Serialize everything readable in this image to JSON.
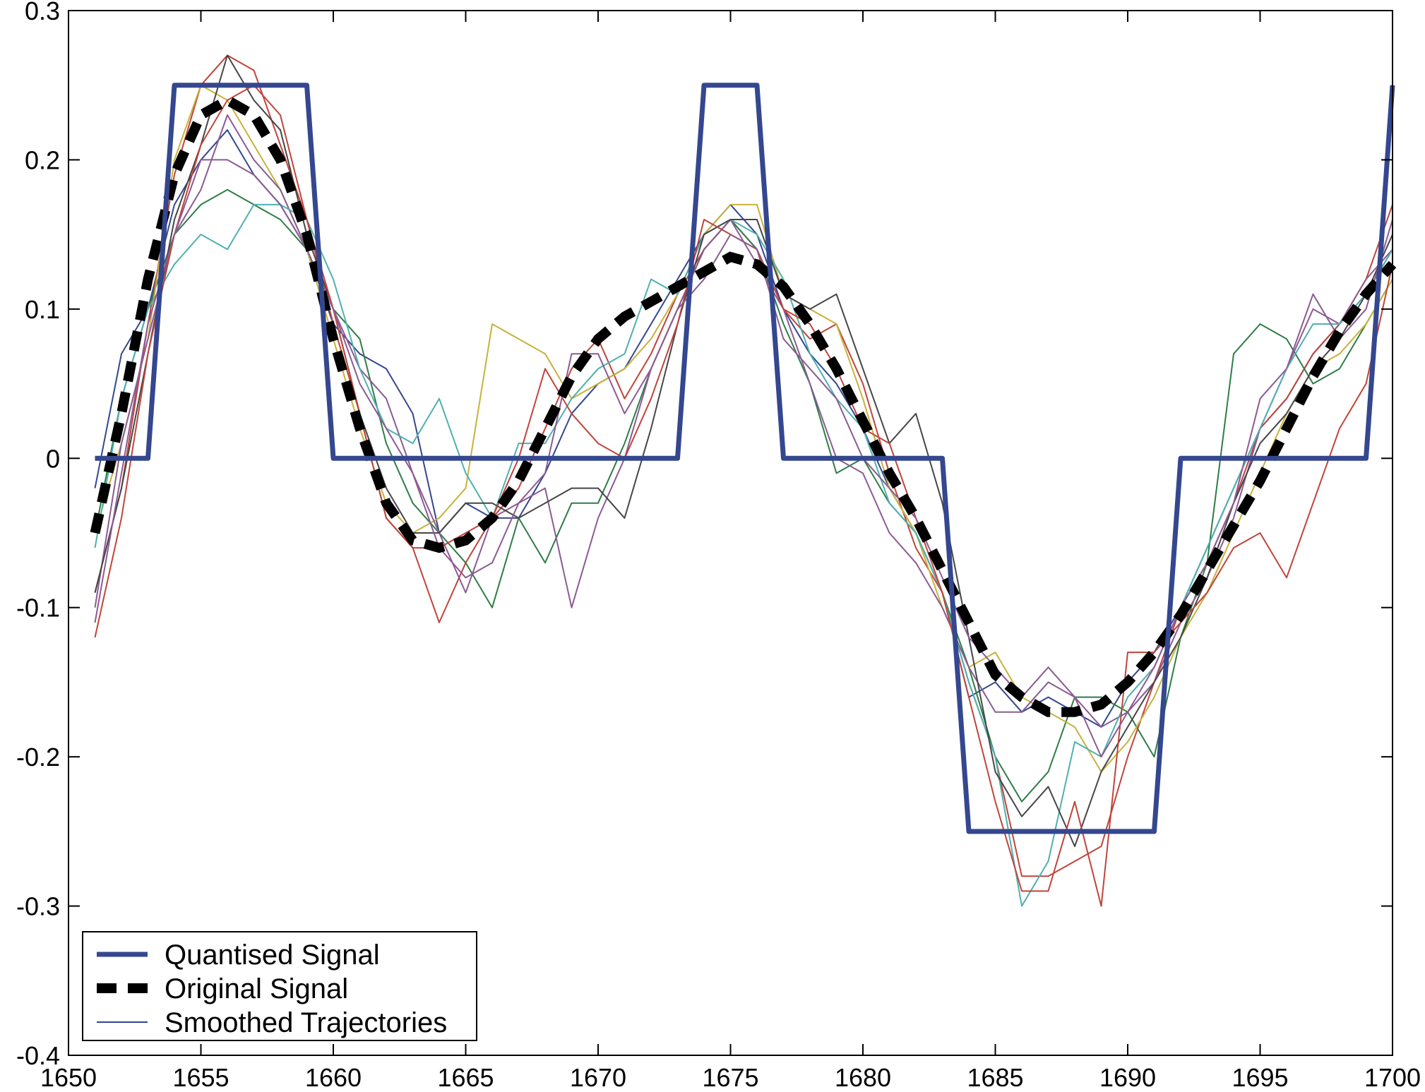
{
  "chart_data": {
    "type": "line",
    "title": "",
    "xlabel": "",
    "ylabel": "",
    "xlim": [
      1650,
      1700
    ],
    "ylim": [
      -0.4,
      0.3
    ],
    "xticks": [
      1650,
      1655,
      1660,
      1665,
      1670,
      1675,
      1680,
      1685,
      1690,
      1695,
      1700
    ],
    "yticks": [
      -0.4,
      -0.3,
      -0.2,
      -0.1,
      0,
      0.1,
      0.2,
      0.3
    ],
    "xtick_labels": [
      "1650",
      "1655",
      "1660",
      "1665",
      "1670",
      "1675",
      "1680",
      "1685",
      "1690",
      "1695",
      "1700"
    ],
    "ytick_labels": [
      "-0.4",
      "-0.3",
      "-0.2",
      "-0.1",
      "0",
      "0.1",
      "0.2",
      "0.3"
    ],
    "grid": false,
    "legend": {
      "position": "bottom-left",
      "entries": [
        {
          "name": "Quantised Signal",
          "color": "#34478f",
          "style": "solid-thick"
        },
        {
          "name": "Original Signal",
          "color": "#000000",
          "style": "dashed-thick"
        },
        {
          "name": "Smoothed Trajectories",
          "color": "#34478f",
          "style": "solid-thin"
        }
      ]
    },
    "quantised_signal": {
      "name": "Quantised Signal",
      "color": "#34478f",
      "x": [
        1651,
        1653,
        1654,
        1659,
        1660,
        1673,
        1674,
        1676,
        1677,
        1683,
        1684,
        1691,
        1692,
        1699,
        1700
      ],
      "y": [
        0,
        0,
        0.25,
        0.25,
        0,
        0,
        0.25,
        0.25,
        0,
        0,
        -0.25,
        -0.25,
        0,
        0,
        0.25
      ]
    },
    "original_signal": {
      "name": "Original Signal",
      "color": "#000000",
      "x": [
        1651,
        1652,
        1653,
        1654,
        1655,
        1656,
        1657,
        1658,
        1659,
        1660,
        1661,
        1662,
        1663,
        1664,
        1665,
        1666,
        1667,
        1668,
        1669,
        1670,
        1671,
        1672,
        1673,
        1674,
        1675,
        1676,
        1677,
        1678,
        1679,
        1680,
        1681,
        1682,
        1683,
        1684,
        1685,
        1686,
        1687,
        1688,
        1689,
        1690,
        1691,
        1692,
        1693,
        1694,
        1695,
        1696,
        1697,
        1698,
        1699,
        1700
      ],
      "y": [
        -0.05,
        0.03,
        0.12,
        0.19,
        0.23,
        0.24,
        0.23,
        0.2,
        0.15,
        0.08,
        0.02,
        -0.03,
        -0.055,
        -0.06,
        -0.055,
        -0.04,
        -0.015,
        0.02,
        0.055,
        0.08,
        0.095,
        0.105,
        0.115,
        0.125,
        0.135,
        0.13,
        0.115,
        0.09,
        0.06,
        0.025,
        -0.01,
        -0.04,
        -0.075,
        -0.11,
        -0.145,
        -0.16,
        -0.17,
        -0.17,
        -0.165,
        -0.15,
        -0.13,
        -0.105,
        -0.075,
        -0.045,
        -0.015,
        0.02,
        0.055,
        0.085,
        0.11,
        0.13
      ]
    },
    "trajectories": [
      {
        "color": "#34478f",
        "y": [
          -0.02,
          0.07,
          0.1,
          0.17,
          0.2,
          0.22,
          0.19,
          0.17,
          0.14,
          0.09,
          0.07,
          0.06,
          0.03,
          -0.05,
          -0.03,
          -0.04,
          -0.04,
          -0.01,
          0.03,
          0.05,
          0.06,
          0.09,
          0.12,
          0.15,
          0.17,
          0.15,
          0.1,
          0.07,
          0.05,
          0.02,
          -0.02,
          -0.05,
          -0.09,
          -0.16,
          -0.15,
          -0.17,
          -0.16,
          -0.17,
          -0.18,
          -0.15,
          -0.13,
          -0.1,
          -0.06,
          -0.02,
          0.02,
          0.04,
          0.07,
          0.09,
          0.11,
          0.14
        ]
      },
      {
        "color": "#c0443b",
        "y": [
          -0.09,
          -0.02,
          0.09,
          0.19,
          0.25,
          0.27,
          0.26,
          0.21,
          0.16,
          0.09,
          0.03,
          -0.04,
          -0.06,
          -0.11,
          -0.07,
          -0.04,
          -0.02,
          0.02,
          0.06,
          0.08,
          0.04,
          0.07,
          0.11,
          0.14,
          0.16,
          0.14,
          0.1,
          0.08,
          0.09,
          0.05,
          -0.01,
          -0.06,
          -0.09,
          -0.15,
          -0.2,
          -0.28,
          -0.28,
          -0.27,
          -0.26,
          -0.2,
          -0.15,
          -0.1,
          -0.07,
          -0.03,
          0.02,
          0.04,
          0.07,
          0.09,
          0.12,
          0.17
        ]
      },
      {
        "color": "#2e7d46",
        "y": [
          -0.05,
          0.04,
          0.1,
          0.15,
          0.17,
          0.18,
          0.17,
          0.16,
          0.14,
          0.1,
          0.08,
          0.01,
          -0.03,
          -0.05,
          -0.07,
          -0.1,
          -0.04,
          -0.07,
          -0.03,
          -0.03,
          0.01,
          0.06,
          0.1,
          0.14,
          0.16,
          0.14,
          0.09,
          0.05,
          -0.01,
          0.0,
          -0.03,
          -0.05,
          -0.09,
          -0.14,
          -0.2,
          -0.23,
          -0.21,
          -0.16,
          -0.16,
          -0.17,
          -0.2,
          -0.12,
          -0.07,
          0.07,
          0.09,
          0.08,
          0.05,
          0.06,
          0.09,
          0.12
        ]
      },
      {
        "color": "#c7b23a",
        "y": [
          -0.05,
          0.01,
          0.08,
          0.2,
          0.25,
          0.24,
          0.21,
          0.18,
          0.14,
          0.08,
          0.02,
          -0.03,
          -0.05,
          -0.04,
          -0.02,
          0.09,
          0.08,
          0.07,
          0.04,
          0.05,
          0.06,
          0.08,
          0.11,
          0.15,
          0.17,
          0.17,
          0.11,
          0.1,
          0.09,
          0.04,
          -0.02,
          -0.05,
          -0.1,
          -0.14,
          -0.13,
          -0.16,
          -0.17,
          -0.18,
          -0.21,
          -0.19,
          -0.16,
          -0.12,
          -0.09,
          -0.05,
          -0.01,
          0.03,
          0.06,
          0.07,
          0.09,
          0.12
        ]
      },
      {
        "color": "#8c5a93",
        "y": [
          -0.1,
          0.01,
          0.08,
          0.15,
          0.18,
          0.23,
          0.2,
          0.18,
          0.14,
          0.1,
          0.06,
          0.04,
          -0.01,
          -0.05,
          -0.09,
          -0.04,
          -0.03,
          -0.02,
          -0.1,
          -0.04,
          0.0,
          0.06,
          0.1,
          0.14,
          0.16,
          0.13,
          0.1,
          0.05,
          0.0,
          -0.01,
          -0.05,
          -0.07,
          -0.1,
          -0.14,
          -0.17,
          -0.17,
          -0.15,
          -0.16,
          -0.18,
          -0.17,
          -0.15,
          -0.11,
          -0.08,
          -0.04,
          0.02,
          0.06,
          0.1,
          0.09,
          0.12,
          0.14
        ]
      },
      {
        "color": "#4fb0b0",
        "y": [
          -0.06,
          0.04,
          0.1,
          0.13,
          0.15,
          0.14,
          0.17,
          0.17,
          0.16,
          0.12,
          0.06,
          0.02,
          0.01,
          0.04,
          -0.01,
          -0.04,
          0.01,
          0.01,
          0.04,
          0.06,
          0.07,
          0.12,
          0.11,
          0.15,
          0.16,
          0.15,
          0.12,
          0.07,
          0.04,
          0.02,
          -0.03,
          -0.05,
          -0.09,
          -0.15,
          -0.2,
          -0.3,
          -0.27,
          -0.19,
          -0.2,
          -0.16,
          -0.14,
          -0.1,
          -0.06,
          -0.02,
          0.02,
          0.06,
          0.09,
          0.09,
          0.11,
          0.14
        ]
      },
      {
        "color": "#464646",
        "y": [
          -0.09,
          -0.02,
          0.07,
          0.16,
          0.21,
          0.27,
          0.24,
          0.22,
          0.15,
          0.1,
          0.03,
          -0.02,
          -0.05,
          -0.05,
          -0.03,
          -0.03,
          -0.04,
          -0.03,
          -0.02,
          -0.02,
          -0.04,
          0.02,
          0.09,
          0.15,
          0.16,
          0.16,
          0.11,
          0.1,
          0.11,
          0.06,
          0.01,
          0.03,
          -0.03,
          -0.12,
          -0.21,
          -0.24,
          -0.22,
          -0.26,
          -0.21,
          -0.18,
          -0.15,
          -0.12,
          -0.08,
          -0.03,
          0.01,
          0.03,
          0.06,
          0.08,
          0.11,
          0.15
        ]
      },
      {
        "color": "#c0443b",
        "y": [
          -0.12,
          -0.04,
          0.07,
          0.15,
          0.21,
          0.24,
          0.25,
          0.23,
          0.16,
          0.1,
          0.03,
          -0.04,
          -0.06,
          -0.06,
          -0.05,
          -0.04,
          0.0,
          0.06,
          0.03,
          0.01,
          0.0,
          0.04,
          0.09,
          0.16,
          0.15,
          0.14,
          0.1,
          0.09,
          0.06,
          0.02,
          0.01,
          -0.04,
          -0.09,
          -0.16,
          -0.23,
          -0.29,
          -0.29,
          -0.23,
          -0.3,
          -0.13,
          -0.13,
          -0.11,
          -0.09,
          -0.06,
          -0.05,
          -0.08,
          -0.03,
          0.02,
          0.05,
          0.13
        ]
      },
      {
        "color": "#8c5a93",
        "y": [
          -0.11,
          -0.01,
          0.09,
          0.15,
          0.2,
          0.2,
          0.19,
          0.17,
          0.14,
          0.1,
          0.05,
          0.02,
          -0.01,
          -0.06,
          -0.08,
          -0.07,
          -0.03,
          -0.01,
          0.07,
          0.07,
          0.03,
          0.06,
          0.1,
          0.12,
          0.15,
          0.14,
          0.08,
          0.06,
          0.04,
          0.0,
          -0.02,
          -0.04,
          -0.08,
          -0.12,
          -0.14,
          -0.16,
          -0.14,
          -0.16,
          -0.2,
          -0.17,
          -0.14,
          -0.1,
          -0.07,
          -0.03,
          0.04,
          0.06,
          0.11,
          0.08,
          0.1,
          0.16
        ]
      }
    ]
  }
}
